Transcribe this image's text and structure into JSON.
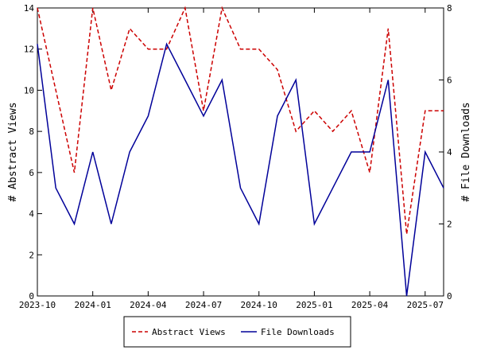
{
  "chart_data": {
    "type": "line",
    "x": [
      "2023-10",
      "2023-11",
      "2023-12",
      "2024-01",
      "2024-02",
      "2024-03",
      "2024-04",
      "2024-05",
      "2024-06",
      "2024-07",
      "2024-08",
      "2024-09",
      "2024-10",
      "2024-11",
      "2024-12",
      "2025-01",
      "2025-02",
      "2025-03",
      "2025-04",
      "2025-05",
      "2025-06",
      "2025-07",
      "2025-08"
    ],
    "x_ticks": [
      "2023-10",
      "2024-01",
      "2024-04",
      "2024-07",
      "2024-10",
      "2025-01",
      "2025-04",
      "2025-07"
    ],
    "xlim": [
      "2023-10",
      "2025-08"
    ],
    "ylabel_left": "# Abstract Views",
    "ylabel_right": "# File Downloads",
    "ylim_left": [
      0,
      14
    ],
    "ylim_right": [
      0,
      8
    ],
    "yticks_left": [
      0,
      2,
      4,
      6,
      8,
      10,
      12,
      14
    ],
    "yticks_right": [
      0,
      2,
      4,
      6,
      8
    ],
    "grid": false,
    "legend_position": "bottom",
    "series": [
      {
        "name": "Abstract Views",
        "axis": "left",
        "color": "#cc0000",
        "style": "dashed",
        "values": [
          14,
          10,
          6,
          14,
          10,
          13,
          12,
          12,
          14,
          9,
          14,
          12,
          12,
          11,
          8,
          9,
          8,
          9,
          6,
          13,
          3,
          9,
          9
        ]
      },
      {
        "name": "File Downloads",
        "axis": "right",
        "color": "#000099",
        "style": "solid",
        "values": [
          7,
          3,
          2,
          4,
          2,
          4,
          5,
          7,
          6,
          5,
          6,
          3,
          2,
          5,
          6,
          2,
          3,
          4,
          4,
          6,
          0,
          4,
          3
        ]
      }
    ]
  }
}
